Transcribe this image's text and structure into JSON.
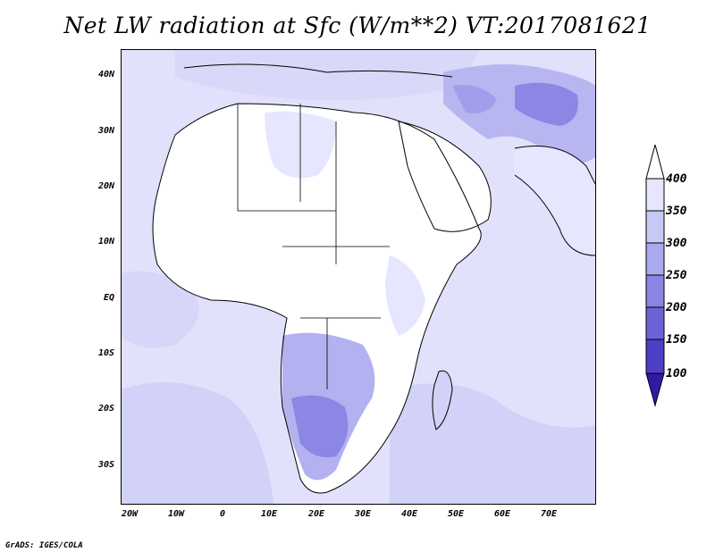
{
  "title": "Net LW radiation at Sfc (W/m**2) VT:2017081621",
  "credit": "GrADS: IGES/COLA",
  "lat_labels": [
    "40N",
    "30N",
    "20N",
    "10N",
    "EQ",
    "10S",
    "20S",
    "30S"
  ],
  "lon_labels": [
    "20W",
    "10W",
    "0",
    "10E",
    "20E",
    "30E",
    "40E",
    "50E",
    "60E",
    "70E"
  ],
  "colorbar": {
    "levels": [
      "400",
      "350",
      "300",
      "250",
      "200",
      "150",
      "100"
    ],
    "colors": [
      "#e6e6ff",
      "#c8c8f5",
      "#a9a9ee",
      "#8a84e4",
      "#6c63d8",
      "#4d3fc6",
      "#3219aa"
    ]
  },
  "map_colors": {
    "ocean": "#e1e1fb",
    "light": "#cfcff7",
    "medium": "#b3b1f0",
    "dark": "#8c86e4",
    "land_clear": "#ffffff"
  }
}
